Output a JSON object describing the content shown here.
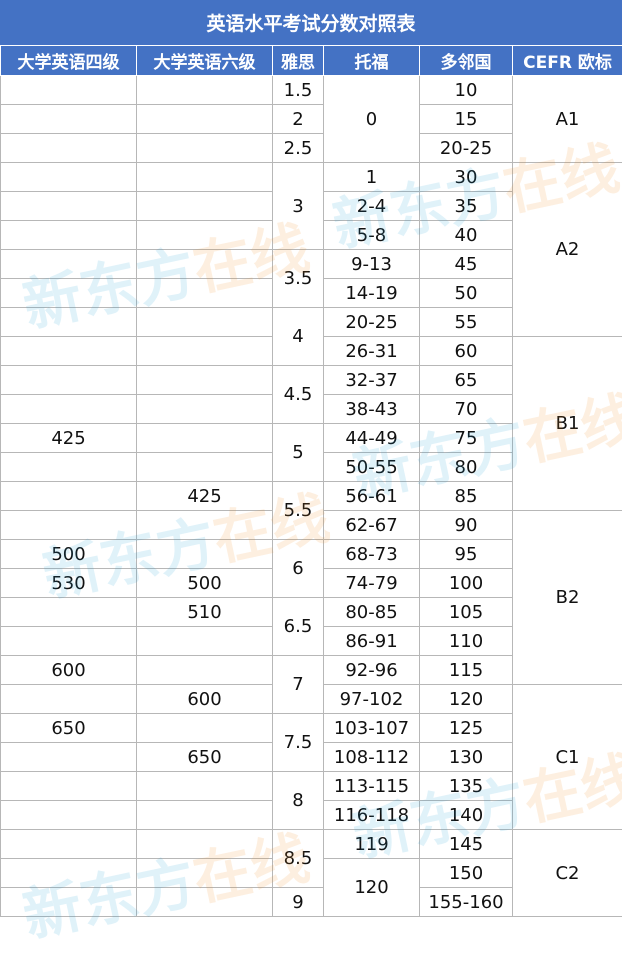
{
  "title": "英语水平考试分数对照表",
  "headers": [
    "大学英语四级",
    "大学英语六级",
    "雅思",
    "托福",
    "多邻国",
    "CEFR 欧标"
  ],
  "cet4": {
    "r13": "425",
    "r18": "500",
    "r19": "530",
    "r21": "600",
    "r23": "650"
  },
  "cet6": {
    "r14": "425",
    "r19": "500",
    "r20": "510",
    "r22": "600",
    "r24": "650"
  },
  "ielts": [
    "1.5",
    "2",
    "2.5",
    "3",
    "3.5",
    "4",
    "4.5",
    "5",
    "5.5",
    "6",
    "6.5",
    "7",
    "7.5",
    "8",
    "8.5",
    "9"
  ],
  "toefl": [
    "0",
    "1",
    "2-4",
    "5-8",
    "9-13",
    "14-19",
    "20-25",
    "26-31",
    "32-37",
    "38-43",
    "44-49",
    "50-55",
    "56-61",
    "62-67",
    "68-73",
    "74-79",
    "80-85",
    "86-91",
    "92-96",
    "97-102",
    "103-107",
    "108-112",
    "113-115",
    "116-118",
    "119",
    "120"
  ],
  "duolingo": [
    "10",
    "15",
    "20-25",
    "30",
    "35",
    "40",
    "45",
    "50",
    "55",
    "60",
    "65",
    "70",
    "75",
    "80",
    "85",
    "90",
    "95",
    "100",
    "105",
    "110",
    "115",
    "120",
    "125",
    "130",
    "135",
    "140",
    "145",
    "150",
    "155-160"
  ],
  "cefr": [
    "A1",
    "A2",
    "B1",
    "B2",
    "C1",
    "C2"
  ],
  "watermark": {
    "part1": "新东方",
    "part2": "在线"
  },
  "colors": {
    "header_bg": "#4472c4",
    "header_text": "#ffffff",
    "border": "#b7b7b7"
  }
}
